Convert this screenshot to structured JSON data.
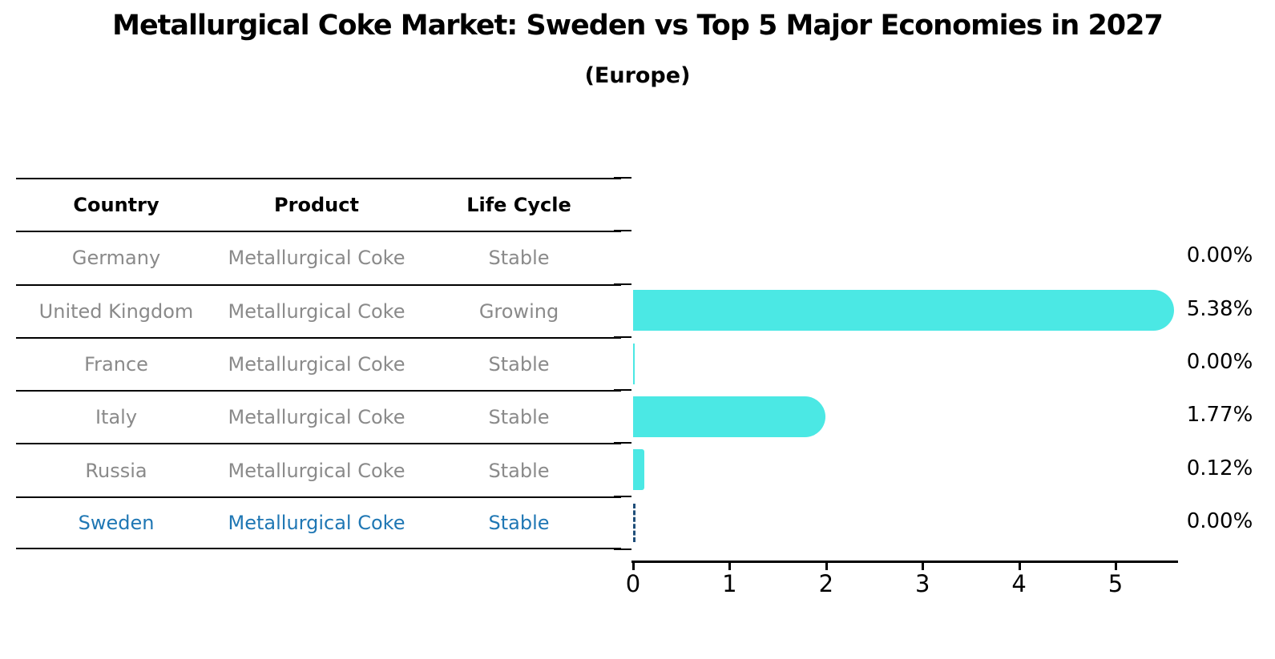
{
  "title": "Metallurgical Coke Market: Sweden vs Top 5 Major Economies in 2027",
  "subtitle": "(Europe)",
  "table": {
    "headers": [
      "Country",
      "Product",
      "Life Cycle"
    ],
    "rows": [
      {
        "country": "Germany",
        "product": "Metallurgical Coke",
        "life_cycle": "Stable",
        "highlight": false
      },
      {
        "country": "United Kingdom",
        "product": "Metallurgical Coke",
        "life_cycle": "Growing",
        "highlight": false
      },
      {
        "country": "France",
        "product": "Metallurgical Coke",
        "life_cycle": "Stable",
        "highlight": false
      },
      {
        "country": "Italy",
        "product": "Metallurgical Coke",
        "life_cycle": "Stable",
        "highlight": false
      },
      {
        "country": "Russia",
        "product": "Metallurgical Coke",
        "life_cycle": "Stable",
        "highlight": false
      },
      {
        "country": "Sweden",
        "product": "Metallurgical Coke",
        "life_cycle": "Stable",
        "highlight": true
      }
    ]
  },
  "chart_data": {
    "type": "bar",
    "orientation": "horizontal",
    "title": "Metallurgical Coke Market: Sweden vs Top 5 Major Economies in 2027",
    "subtitle": "(Europe)",
    "categories": [
      "Germany",
      "United Kingdom",
      "France",
      "Italy",
      "Russia",
      "Sweden"
    ],
    "values": [
      0.0,
      5.38,
      0.0,
      1.77,
      0.12,
      0.0
    ],
    "bars": [
      {
        "category": "Germany",
        "value": 0.0,
        "label": "0.00%",
        "style": "none"
      },
      {
        "category": "United Kingdom",
        "value": 5.38,
        "label": "5.38%",
        "style": "rounded"
      },
      {
        "category": "France",
        "value": 0.0,
        "label": "0.00%",
        "style": "sliver"
      },
      {
        "category": "Italy",
        "value": 1.77,
        "label": "1.77%",
        "style": "rounded"
      },
      {
        "category": "Russia",
        "value": 0.12,
        "label": "0.12%",
        "style": "small"
      },
      {
        "category": "Sweden",
        "value": 0.0,
        "label": "0.00%",
        "style": "dashed-outline"
      }
    ],
    "xlabel": "",
    "ylabel": "",
    "xtick_labels": [
      "0",
      "1",
      "2",
      "3",
      "4",
      "5"
    ],
    "xlim": [
      0,
      5.65
    ],
    "grid": false,
    "legend": "none",
    "bar_color": "#4be8e4",
    "highlight_category": "Sweden",
    "highlight_edge_color": "#1f4e79"
  },
  "colors": {
    "background": "#ffffff",
    "text_primary": "#000000",
    "text_muted": "#8a8a8a",
    "highlight_text": "#1f77b4",
    "bar_fill": "#4be8e4"
  }
}
